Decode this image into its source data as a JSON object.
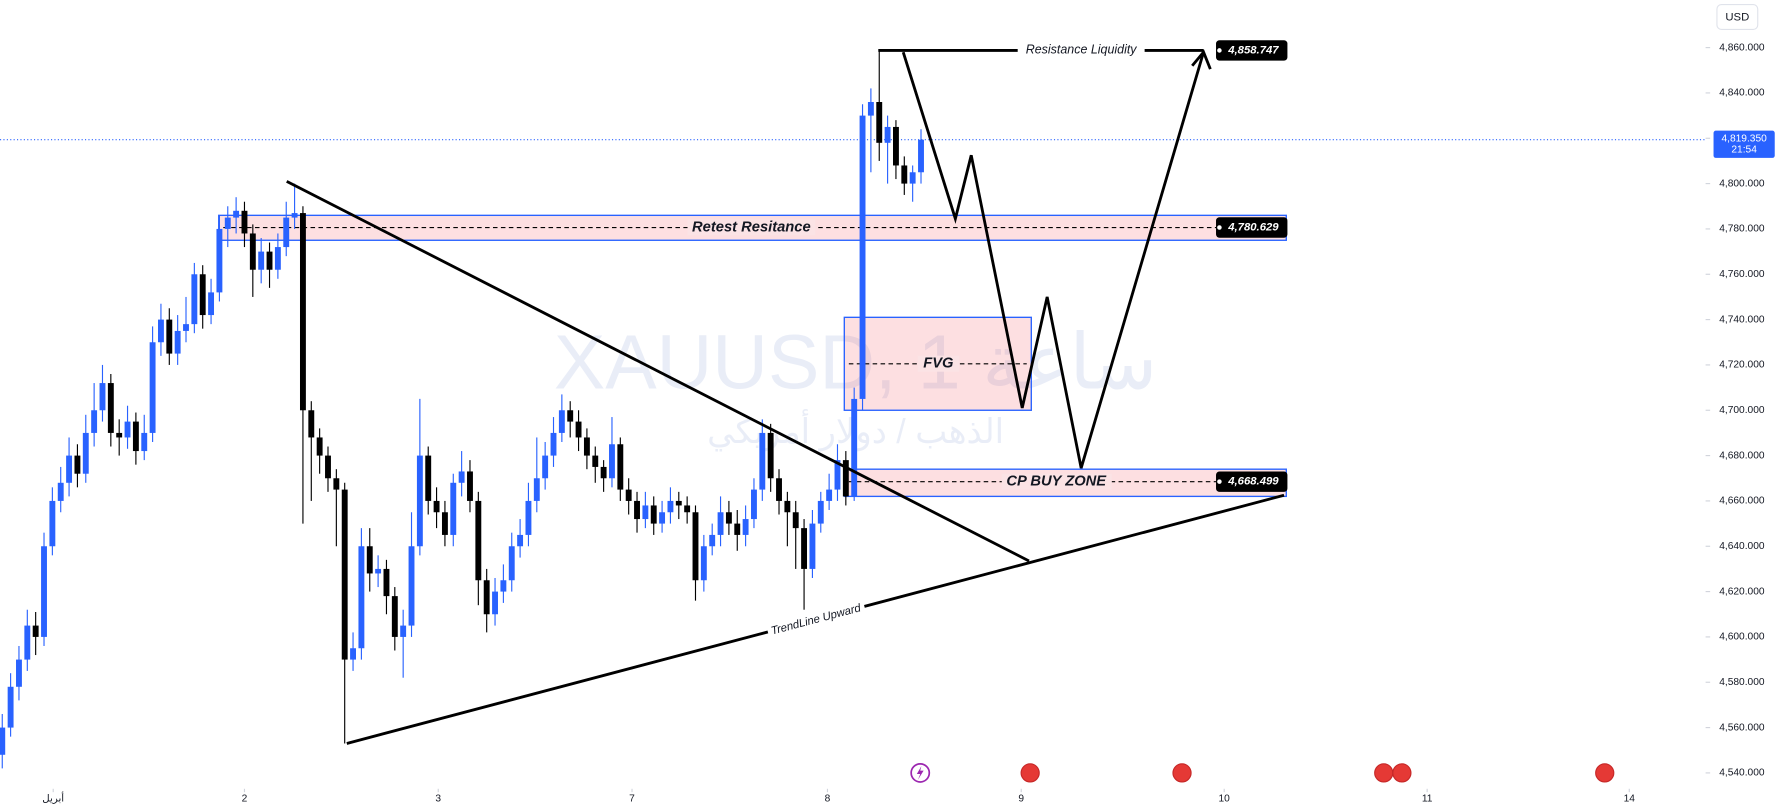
{
  "chart_data": {
    "type": "candlestick",
    "watermark": "XAUUSD, 1 ساعة",
    "watermark_sub": "الذهب / دولار أمريكي",
    "currency": "USD",
    "up_color": "#2962ff",
    "down_color": "#000000",
    "xlim": [
      -0.27,
      203.26
    ],
    "ylim": [
      4533,
      4881
    ],
    "yticks": [
      {
        "value": 4540,
        "label": "4,540.000"
      },
      {
        "value": 4560,
        "label": "4,560.000"
      },
      {
        "value": 4580,
        "label": "4,580.000"
      },
      {
        "value": 4600,
        "label": "4,600.000"
      },
      {
        "value": 4620,
        "label": "4,620.000"
      },
      {
        "value": 4640,
        "label": "4,640.000"
      },
      {
        "value": 4660,
        "label": "4,660.000"
      },
      {
        "value": 4680,
        "label": "4,680.000"
      },
      {
        "value": 4700,
        "label": "4,700.000"
      },
      {
        "value": 4720,
        "label": "4,720.000"
      },
      {
        "value": 4740,
        "label": "4,740.000"
      },
      {
        "value": 4760,
        "label": "4,760.000"
      },
      {
        "value": 4780,
        "label": "4,780.000"
      },
      {
        "value": 4800,
        "label": "4,800.000"
      },
      {
        "value": 4820,
        "label": "4,820.000"
      },
      {
        "value": 4840,
        "label": "4,840.000"
      },
      {
        "value": 4860,
        "label": "4,860.000"
      }
    ],
    "xticks": [
      {
        "value": 6.1,
        "label": "أبريل"
      },
      {
        "value": 29.0,
        "label": "2"
      },
      {
        "value": 52.2,
        "label": "3"
      },
      {
        "value": 75.4,
        "label": "7"
      },
      {
        "value": 98.8,
        "label": "8"
      },
      {
        "value": 122.0,
        "label": "9"
      },
      {
        "value": 146.3,
        "label": "10"
      },
      {
        "value": 170.6,
        "label": "11"
      },
      {
        "value": 194.8,
        "label": "14"
      }
    ],
    "x": [
      0,
      1,
      2,
      3,
      4,
      5,
      6,
      7,
      8,
      9,
      10,
      11,
      12,
      13,
      14,
      15,
      16,
      17,
      18,
      19,
      20,
      21,
      22,
      23,
      24,
      25,
      26,
      27,
      28,
      29,
      30,
      31,
      32,
      33,
      34,
      35,
      36,
      37,
      38,
      39,
      40,
      41,
      42,
      43,
      44,
      45,
      46,
      47,
      48,
      49,
      50,
      51,
      52,
      53,
      54,
      55,
      56,
      57,
      58,
      59,
      60,
      61,
      62,
      63,
      64,
      65,
      66,
      67,
      68,
      69,
      70,
      71,
      72,
      73,
      74,
      75,
      76,
      77,
      78,
      79,
      80,
      81,
      82,
      83,
      84,
      85,
      86,
      87,
      88,
      89,
      90,
      91,
      92,
      93,
      94,
      95,
      96,
      97,
      98,
      99,
      100,
      101,
      102,
      103,
      104,
      105,
      106,
      107,
      108,
      109,
      110
    ],
    "open": [
      4548,
      4560,
      4578,
      4590,
      4605,
      4600,
      4640,
      4660,
      4668,
      4680,
      4672,
      4690,
      4700,
      4712,
      4690,
      4688,
      4695,
      4682,
      4690,
      4730,
      4740,
      4725,
      4735,
      4738,
      4760,
      4742,
      4752,
      4780,
      4785,
      4788,
      4778,
      4762,
      4770,
      4762,
      4772,
      4785,
      4787,
      4700,
      4688,
      4680,
      4670,
      4665,
      4590,
      4595,
      4640,
      4628,
      4630,
      4618,
      4600,
      4605,
      4640,
      4680,
      4660,
      4655,
      4645,
      4668,
      4673,
      4660,
      4625,
      4610,
      4620,
      4625,
      4640,
      4645,
      4660,
      4670,
      4680,
      4690,
      4700,
      4695,
      4688,
      4680,
      4675,
      4670,
      4685,
      4665,
      4660,
      4652,
      4658,
      4650,
      4655,
      4660,
      4658,
      4655,
      4625,
      4640,
      4645,
      4655,
      4650,
      4645,
      4652,
      4665,
      4690,
      4670,
      4660,
      4655,
      4648,
      4630,
      4650,
      4660,
      4665,
      4678,
      4662,
      4705,
      4830,
      4836,
      4818,
      4825,
      4808,
      4800,
      4805
    ],
    "high": [
      4566,
      4584,
      4596,
      4612,
      4611,
      4646,
      4666,
      4675,
      4688,
      4685,
      4698,
      4712,
      4720,
      4716,
      4696,
      4702,
      4699,
      4698,
      4737,
      4747,
      4745,
      4742,
      4750,
      4765,
      4764,
      4758,
      4786,
      4790,
      4794,
      4792,
      4782,
      4776,
      4774,
      4778,
      4792,
      4800,
      4790,
      4704,
      4692,
      4684,
      4674,
      4668,
      4602,
      4648,
      4648,
      4636,
      4634,
      4622,
      4612,
      4655,
      4705,
      4684,
      4666,
      4660,
      4672,
      4682,
      4678,
      4664,
      4630,
      4626,
      4632,
      4646,
      4652,
      4668,
      4688,
      4686,
      4697,
      4707,
      4704,
      4700,
      4692,
      4684,
      4678,
      4697,
      4688,
      4670,
      4664,
      4664,
      4662,
      4660,
      4666,
      4664,
      4662,
      4658,
      4645,
      4650,
      4662,
      4660,
      4656,
      4658,
      4670,
      4696,
      4694,
      4674,
      4664,
      4660,
      4652,
      4656,
      4664,
      4672,
      4685,
      4682,
      4710,
      4835,
      4842,
      4858.747,
      4830,
      4828,
      4812,
      4808,
      4824
    ],
    "low": [
      4542,
      4556,
      4572,
      4585,
      4592,
      4596,
      4636,
      4655,
      4662,
      4666,
      4668,
      4684,
      4695,
      4684,
      4680,
      4683,
      4676,
      4678,
      4686,
      4724,
      4720,
      4720,
      4730,
      4734,
      4736,
      4738,
      4748,
      4772,
      4778,
      4772,
      4750,
      4756,
      4754,
      4758,
      4768,
      4780,
      4650,
      4660,
      4672,
      4664,
      4640,
      4553,
      4585,
      4590,
      4620,
      4622,
      4610,
      4594,
      4582,
      4600,
      4636,
      4654,
      4648,
      4640,
      4640,
      4662,
      4655,
      4614,
      4602,
      4605,
      4615,
      4620,
      4635,
      4640,
      4655,
      4665,
      4675,
      4686,
      4688,
      4682,
      4674,
      4668,
      4664,
      4666,
      4660,
      4654,
      4646,
      4648,
      4645,
      4646,
      4650,
      4652,
      4650,
      4616,
      4620,
      4636,
      4640,
      4645,
      4638,
      4640,
      4648,
      4660,
      4664,
      4654,
      4640,
      4630,
      4612,
      4626,
      4646,
      4656,
      4660,
      4658,
      4660,
      4700,
      4805,
      4810,
      4800,
      4802,
      4795,
      4792,
      4800
    ],
    "close": [
      4560,
      4578,
      4590,
      4605,
      4600,
      4640,
      4660,
      4668,
      4680,
      4672,
      4690,
      4700,
      4712,
      4690,
      4688,
      4695,
      4682,
      4690,
      4730,
      4740,
      4725,
      4735,
      4738,
      4760,
      4742,
      4752,
      4780,
      4785,
      4788,
      4778,
      4762,
      4770,
      4762,
      4772,
      4785,
      4787,
      4700,
      4688,
      4680,
      4670,
      4665,
      4590,
      4595,
      4640,
      4628,
      4630,
      4618,
      4600,
      4605,
      4640,
      4680,
      4660,
      4655,
      4645,
      4668,
      4673,
      4660,
      4625,
      4610,
      4620,
      4625,
      4640,
      4645,
      4660,
      4670,
      4680,
      4690,
      4700,
      4695,
      4688,
      4680,
      4675,
      4670,
      4685,
      4665,
      4660,
      4652,
      4658,
      4650,
      4655,
      4660,
      4658,
      4655,
      4625,
      4640,
      4645,
      4655,
      4650,
      4645,
      4652,
      4665,
      4690,
      4670,
      4660,
      4655,
      4648,
      4630,
      4650,
      4660,
      4665,
      4678,
      4662,
      4705,
      4830,
      4836,
      4818,
      4825,
      4808,
      4800,
      4805,
      4819.35
    ],
    "levels": [
      {
        "value": 4858.747,
        "label": "4,858.747",
        "text": "Resistance Liquidity"
      },
      {
        "value": 4780.629,
        "label": "4,780.629",
        "text": "Retest Resitance",
        "top": 4786,
        "bottom": 4775
      },
      {
        "value": 4668.499,
        "label": "4,668.499",
        "text": "CP BUY ZONE",
        "top": 4674,
        "bottom": 4662
      }
    ],
    "fvg": {
      "text": "FVG",
      "top": 4741,
      "bottom": 4700
    },
    "trendline_text": "TrendLine Upward",
    "last_price": {
      "value": 4819.35,
      "label": "4,819.350",
      "countdown": "21:54"
    }
  }
}
